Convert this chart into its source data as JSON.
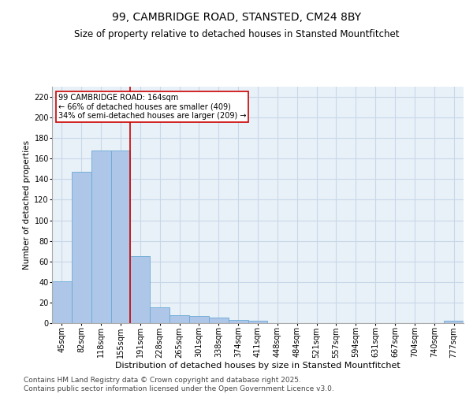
{
  "title1": "99, CAMBRIDGE ROAD, STANSTED, CM24 8BY",
  "title2": "Size of property relative to detached houses in Stansted Mountfitchet",
  "xlabel": "Distribution of detached houses by size in Stansted Mountfitchet",
  "ylabel": "Number of detached properties",
  "categories": [
    "45sqm",
    "82sqm",
    "118sqm",
    "155sqm",
    "191sqm",
    "228sqm",
    "265sqm",
    "301sqm",
    "338sqm",
    "374sqm",
    "411sqm",
    "448sqm",
    "484sqm",
    "521sqm",
    "557sqm",
    "594sqm",
    "631sqm",
    "667sqm",
    "704sqm",
    "740sqm",
    "777sqm"
  ],
  "values": [
    41,
    147,
    168,
    168,
    65,
    15,
    8,
    7,
    5,
    3,
    2,
    0,
    0,
    0,
    0,
    0,
    0,
    0,
    0,
    0,
    2
  ],
  "bar_color": "#aec6e8",
  "bar_edge_color": "#6aaad4",
  "vline_x": 3.5,
  "vline_color": "#cc0000",
  "annotation_lines": [
    "99 CAMBRIDGE ROAD: 164sqm",
    "← 66% of detached houses are smaller (409)",
    "34% of semi-detached houses are larger (209) →"
  ],
  "annotation_box_color": "#cc0000",
  "ylim": [
    0,
    230
  ],
  "yticks": [
    0,
    20,
    40,
    60,
    80,
    100,
    120,
    140,
    160,
    180,
    200,
    220
  ],
  "grid_color": "#c8d8e8",
  "bg_color": "#e8f0f8",
  "footer": "Contains HM Land Registry data © Crown copyright and database right 2025.\nContains public sector information licensed under the Open Government Licence v3.0.",
  "footer_fontsize": 6.5,
  "title1_fontsize": 10,
  "title2_fontsize": 8.5,
  "ylabel_fontsize": 7.5,
  "xlabel_fontsize": 8,
  "tick_fontsize": 7,
  "annot_fontsize": 7
}
